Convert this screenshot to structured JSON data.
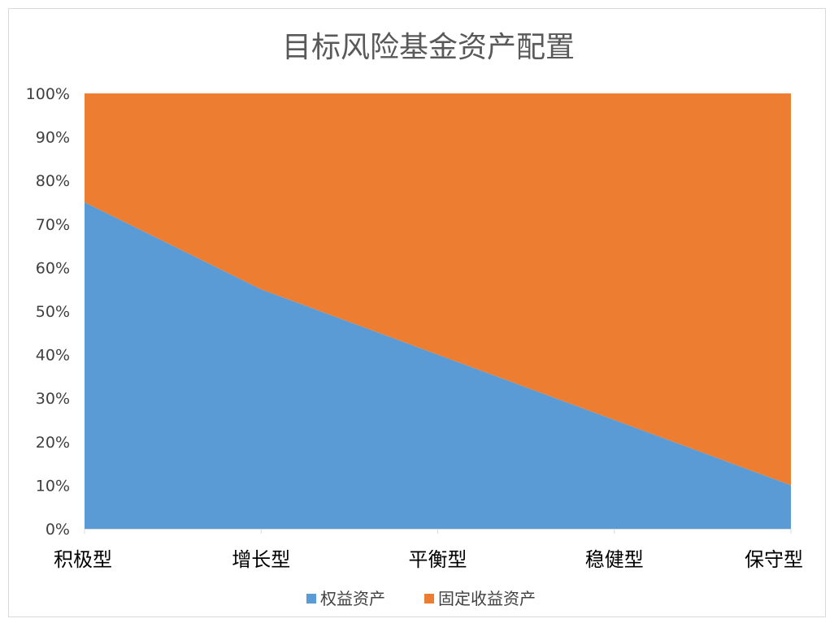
{
  "chart_data": {
    "type": "area",
    "stacked": "percent",
    "title": "目标风险基金资产配置",
    "categories": [
      "积极型",
      "增长型",
      "平衡型",
      "稳健型",
      "保守型"
    ],
    "series": [
      {
        "name": "权益资产",
        "values": [
          75,
          55,
          40,
          25,
          10
        ],
        "color": "#5b9bd5"
      },
      {
        "name": "固定收益资产",
        "values": [
          25,
          45,
          60,
          75,
          90
        ],
        "color": "#ed7d31"
      }
    ],
    "y_ticks": [
      "0%",
      "10%",
      "20%",
      "30%",
      "40%",
      "50%",
      "60%",
      "70%",
      "80%",
      "90%",
      "100%"
    ],
    "ylim": [
      0,
      100
    ],
    "grid": false,
    "legend": "bottom"
  }
}
